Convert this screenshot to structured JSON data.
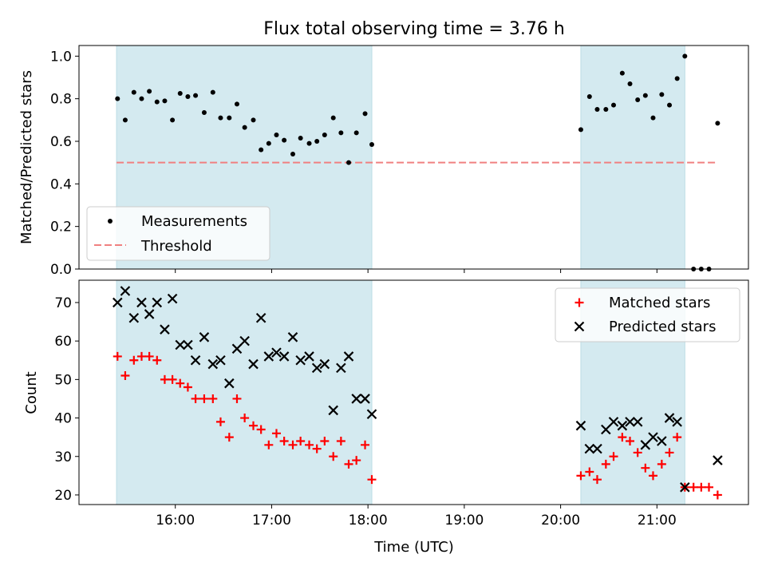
{
  "chart_data": {
    "type": "scatter",
    "title": "Flux total observing time = 3.76 h",
    "xlabel": "Time (UTC)",
    "x_tick_labels": [
      "16:00",
      "17:00",
      "18:00",
      "19:00",
      "20:00",
      "21:00"
    ],
    "x_tick_hours": [
      16,
      17,
      18,
      19,
      20,
      21
    ],
    "xlim_hours": [
      15.0,
      21.95
    ],
    "shaded_intervals_hours": [
      [
        15.39,
        18.04
      ],
      [
        20.21,
        21.29
      ]
    ],
    "colors": {
      "shade": "#d4eaf0",
      "threshold": "#f08080",
      "matched": "#ff0000",
      "measurements": "#000000",
      "predicted": "#000000"
    },
    "top": {
      "ylabel": "Matched/Predicted stars",
      "ylim": [
        0.0,
        1.05
      ],
      "y_ticks": [
        0.0,
        0.2,
        0.4,
        0.6,
        0.8,
        1.0
      ],
      "y_tick_labels": [
        "0.0",
        "0.2",
        "0.4",
        "0.6",
        "0.8",
        "1.0"
      ],
      "threshold": {
        "value": 0.5,
        "x_range_hours": [
          15.39,
          21.62
        ]
      },
      "legend": {
        "position": "lower-left",
        "entries": [
          "Measurements",
          "Threshold"
        ]
      },
      "measurements": [
        [
          15.4,
          0.8
        ],
        [
          15.48,
          0.7
        ],
        [
          15.57,
          0.83
        ],
        [
          15.65,
          0.8
        ],
        [
          15.73,
          0.835
        ],
        [
          15.81,
          0.785
        ],
        [
          15.89,
          0.79
        ],
        [
          15.97,
          0.7
        ],
        [
          16.05,
          0.825
        ],
        [
          16.13,
          0.81
        ],
        [
          16.21,
          0.815
        ],
        [
          16.3,
          0.735
        ],
        [
          16.39,
          0.83
        ],
        [
          16.47,
          0.71
        ],
        [
          16.56,
          0.71
        ],
        [
          16.64,
          0.775
        ],
        [
          16.72,
          0.665
        ],
        [
          16.81,
          0.7
        ],
        [
          16.89,
          0.56
        ],
        [
          16.97,
          0.59
        ],
        [
          17.05,
          0.63
        ],
        [
          17.13,
          0.605
        ],
        [
          17.22,
          0.54
        ],
        [
          17.3,
          0.615
        ],
        [
          17.39,
          0.59
        ],
        [
          17.47,
          0.6
        ],
        [
          17.55,
          0.63
        ],
        [
          17.64,
          0.71
        ],
        [
          17.72,
          0.64
        ],
        [
          17.8,
          0.5
        ],
        [
          17.88,
          0.64
        ],
        [
          17.97,
          0.73
        ],
        [
          18.04,
          0.585
        ],
        [
          20.21,
          0.655
        ],
        [
          20.3,
          0.81
        ],
        [
          20.38,
          0.75
        ],
        [
          20.47,
          0.75
        ],
        [
          20.55,
          0.77
        ],
        [
          20.64,
          0.92
        ],
        [
          20.72,
          0.87
        ],
        [
          20.8,
          0.795
        ],
        [
          20.88,
          0.815
        ],
        [
          20.96,
          0.71
        ],
        [
          21.05,
          0.82
        ],
        [
          21.13,
          0.77
        ],
        [
          21.21,
          0.895
        ],
        [
          21.29,
          1.0
        ],
        [
          21.38,
          0.0
        ],
        [
          21.46,
          0.0
        ],
        [
          21.54,
          0.0
        ],
        [
          21.63,
          0.685
        ]
      ]
    },
    "bottom": {
      "ylabel": "Count",
      "ylim": [
        17.5,
        75.8
      ],
      "y_ticks": [
        20,
        30,
        40,
        50,
        60,
        70
      ],
      "y_tick_labels": [
        "20",
        "30",
        "40",
        "50",
        "60",
        "70"
      ],
      "legend": {
        "position": "top-right",
        "entries": [
          "Matched stars",
          "Predicted stars"
        ]
      },
      "matched": [
        [
          15.4,
          56
        ],
        [
          15.48,
          51
        ],
        [
          15.57,
          55
        ],
        [
          15.65,
          56
        ],
        [
          15.73,
          56
        ],
        [
          15.81,
          55
        ],
        [
          15.89,
          50
        ],
        [
          15.97,
          50
        ],
        [
          16.05,
          49
        ],
        [
          16.13,
          48
        ],
        [
          16.21,
          45
        ],
        [
          16.3,
          45
        ],
        [
          16.39,
          45
        ],
        [
          16.47,
          39
        ],
        [
          16.56,
          35
        ],
        [
          16.64,
          45
        ],
        [
          16.72,
          40
        ],
        [
          16.81,
          38
        ],
        [
          16.89,
          37
        ],
        [
          16.97,
          33
        ],
        [
          17.05,
          36
        ],
        [
          17.13,
          34
        ],
        [
          17.22,
          33
        ],
        [
          17.3,
          34
        ],
        [
          17.39,
          33
        ],
        [
          17.47,
          32
        ],
        [
          17.55,
          34
        ],
        [
          17.64,
          30
        ],
        [
          17.72,
          34
        ],
        [
          17.8,
          28
        ],
        [
          17.88,
          29
        ],
        [
          17.97,
          33
        ],
        [
          18.04,
          24
        ],
        [
          20.21,
          25
        ],
        [
          20.3,
          26
        ],
        [
          20.38,
          24
        ],
        [
          20.47,
          28
        ],
        [
          20.55,
          30
        ],
        [
          20.64,
          35
        ],
        [
          20.72,
          34
        ],
        [
          20.8,
          31
        ],
        [
          20.88,
          27
        ],
        [
          20.96,
          25
        ],
        [
          21.05,
          28
        ],
        [
          21.13,
          31
        ],
        [
          21.21,
          35
        ],
        [
          21.29,
          22
        ],
        [
          21.38,
          22
        ],
        [
          21.46,
          22
        ],
        [
          21.54,
          22
        ],
        [
          21.63,
          20
        ]
      ],
      "predicted": [
        [
          15.4,
          70
        ],
        [
          15.48,
          73
        ],
        [
          15.57,
          66
        ],
        [
          15.65,
          70
        ],
        [
          15.73,
          67
        ],
        [
          15.81,
          70
        ],
        [
          15.89,
          63
        ],
        [
          15.97,
          71
        ],
        [
          16.05,
          59
        ],
        [
          16.13,
          59
        ],
        [
          16.21,
          55
        ],
        [
          16.3,
          61
        ],
        [
          16.39,
          54
        ],
        [
          16.47,
          55
        ],
        [
          16.56,
          49
        ],
        [
          16.64,
          58
        ],
        [
          16.72,
          60
        ],
        [
          16.81,
          54
        ],
        [
          16.89,
          66
        ],
        [
          16.97,
          56
        ],
        [
          17.05,
          57
        ],
        [
          17.13,
          56
        ],
        [
          17.22,
          61
        ],
        [
          17.3,
          55
        ],
        [
          17.39,
          56
        ],
        [
          17.47,
          53
        ],
        [
          17.55,
          54
        ],
        [
          17.64,
          42
        ],
        [
          17.72,
          53
        ],
        [
          17.8,
          56
        ],
        [
          17.88,
          45
        ],
        [
          17.97,
          45
        ],
        [
          18.04,
          41
        ],
        [
          20.21,
          38
        ],
        [
          20.3,
          32
        ],
        [
          20.38,
          32
        ],
        [
          20.47,
          37
        ],
        [
          20.55,
          39
        ],
        [
          20.64,
          38
        ],
        [
          20.72,
          39
        ],
        [
          20.8,
          39
        ],
        [
          20.88,
          33
        ],
        [
          20.96,
          35
        ],
        [
          21.05,
          34
        ],
        [
          21.13,
          40
        ],
        [
          21.21,
          39
        ],
        [
          21.29,
          22
        ],
        [
          21.63,
          29
        ]
      ]
    }
  }
}
